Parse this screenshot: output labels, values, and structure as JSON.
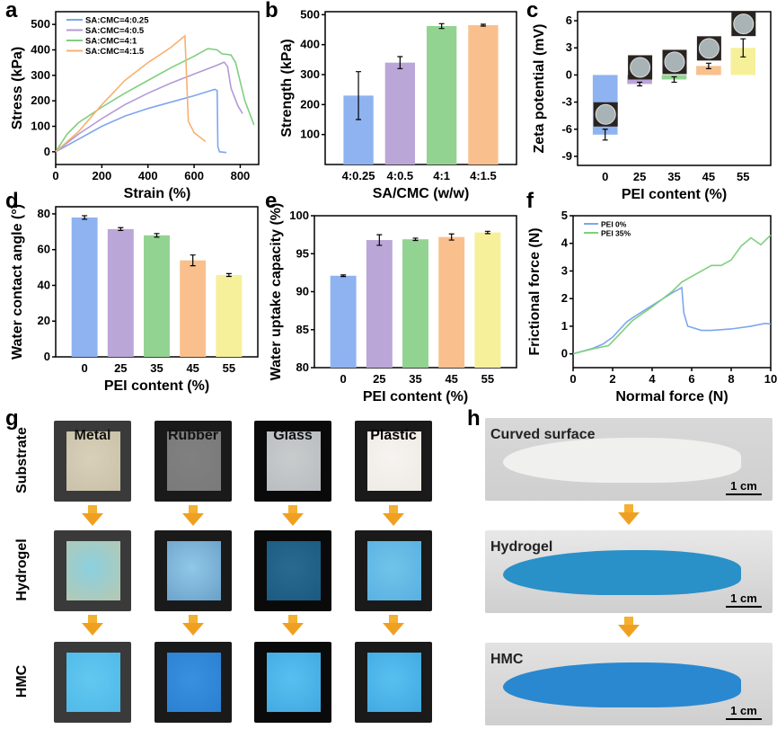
{
  "panel_labels": [
    "a",
    "b",
    "c",
    "d",
    "e",
    "f",
    "g",
    "h"
  ],
  "chart_data": [
    {
      "id": "a",
      "type": "line",
      "xlabel": "Strain (%)",
      "ylabel": "Stress (kPa)",
      "xlim": [
        0,
        880
      ],
      "ylim": [
        -50,
        550
      ],
      "xticks": [
        0,
        200,
        400,
        600,
        800
      ],
      "yticks": [
        0,
        100,
        200,
        300,
        400,
        500
      ],
      "legend": "top-left",
      "series": [
        {
          "name": "SA:CMC=4:0.25",
          "color": "#7ea6ee",
          "points": [
            [
              0,
              0
            ],
            [
              100,
              50
            ],
            [
              200,
              100
            ],
            [
              300,
              140
            ],
            [
              400,
              170
            ],
            [
              500,
              195
            ],
            [
              600,
              220
            ],
            [
              690,
              245
            ],
            [
              700,
              240
            ],
            [
              703,
              20
            ],
            [
              710,
              0
            ],
            [
              740,
              -3
            ]
          ]
        },
        {
          "name": "SA:CMC=4:0.5",
          "color": "#b39ad6",
          "points": [
            [
              0,
              0
            ],
            [
              100,
              70
            ],
            [
              200,
              130
            ],
            [
              300,
              185
            ],
            [
              400,
              230
            ],
            [
              500,
              270
            ],
            [
              600,
              305
            ],
            [
              700,
              340
            ],
            [
              730,
              352
            ],
            [
              745,
              335
            ],
            [
              760,
              250
            ],
            [
              790,
              180
            ],
            [
              810,
              150
            ]
          ]
        },
        {
          "name": "SA:CMC=4:1",
          "color": "#7fcf7f",
          "points": [
            [
              0,
              0
            ],
            [
              50,
              70
            ],
            [
              100,
              115
            ],
            [
              200,
              175
            ],
            [
              300,
              230
            ],
            [
              400,
              280
            ],
            [
              500,
              330
            ],
            [
              600,
              375
            ],
            [
              660,
              405
            ],
            [
              700,
              400
            ],
            [
              720,
              385
            ],
            [
              760,
              380
            ],
            [
              780,
              350
            ],
            [
              820,
              200
            ],
            [
              860,
              105
            ]
          ]
        },
        {
          "name": "SA:CMC=4:1.5",
          "color": "#f8b070",
          "points": [
            [
              0,
              0
            ],
            [
              100,
              80
            ],
            [
              200,
              185
            ],
            [
              300,
              280
            ],
            [
              400,
              350
            ],
            [
              500,
              410
            ],
            [
              560,
              455
            ],
            [
              565,
              350
            ],
            [
              575,
              120
            ],
            [
              600,
              75
            ],
            [
              650,
              40
            ]
          ]
        }
      ]
    },
    {
      "id": "b",
      "type": "bar",
      "xlabel": "SA/CMC (w/w)",
      "ylabel": "Strength (kPa)",
      "ylim": [
        0,
        510
      ],
      "yticks": [
        100,
        200,
        300,
        400,
        500
      ],
      "categories": [
        "4:0.25",
        "4:0.5",
        "4:1",
        "4:1.5"
      ],
      "values": [
        230,
        340,
        462,
        465
      ],
      "errors": [
        80,
        20,
        8,
        3
      ],
      "colors": [
        "#8fb3f0",
        "#bba6d8",
        "#92d392",
        "#f9c08e"
      ]
    },
    {
      "id": "c",
      "type": "bar",
      "xlabel": "PEI content (%)",
      "ylabel": "Zeta potential (mV)",
      "ylim": [
        -10,
        7
      ],
      "yticks": [
        -9,
        -6,
        -3,
        0,
        3,
        6
      ],
      "categories": [
        "0",
        "25",
        "35",
        "45",
        "55"
      ],
      "values": [
        -6.6,
        -1.0,
        -0.5,
        1.0,
        3.0
      ],
      "errors": [
        0.6,
        0.2,
        0.3,
        0.3,
        1.0
      ],
      "colors": [
        "#8fb3f0",
        "#bba6d8",
        "#92d392",
        "#f9c08e",
        "#f6f09a"
      ]
    },
    {
      "id": "d",
      "type": "bar",
      "xlabel": "PEI content (%)",
      "ylabel": "Water contact angle (°)",
      "ylim": [
        0,
        84
      ],
      "yticks": [
        0,
        20,
        40,
        60,
        80
      ],
      "categories": [
        "0",
        "25",
        "35",
        "45",
        "55"
      ],
      "values": [
        78,
        71.5,
        68,
        54,
        45.8
      ],
      "errors": [
        1,
        0.8,
        1,
        3,
        0.8
      ],
      "colors": [
        "#8fb3f0",
        "#bba6d8",
        "#92d392",
        "#f9c08e",
        "#f6f09a"
      ]
    },
    {
      "id": "e",
      "type": "bar",
      "xlabel": "PEI content (%)",
      "ylabel": "Water uptake capacity (%)",
      "ylim": [
        80,
        100
      ],
      "yticks": [
        80,
        85,
        90,
        95,
        100
      ],
      "categories": [
        "0",
        "25",
        "35",
        "45",
        "55"
      ],
      "values": [
        92.1,
        96.8,
        96.9,
        97.2,
        97.8
      ],
      "errors": [
        0.1,
        0.7,
        0.15,
        0.4,
        0.15
      ],
      "colors": [
        "#8fb3f0",
        "#bba6d8",
        "#92d392",
        "#f9c08e",
        "#f6f09a"
      ]
    },
    {
      "id": "f",
      "type": "line",
      "xlabel": "Normal force (N)",
      "ylabel": "Frictional force (N)",
      "xlim": [
        0,
        10
      ],
      "ylim": [
        -0.5,
        5
      ],
      "xticks": [
        0,
        2,
        4,
        6,
        8,
        10
      ],
      "yticks": [
        0,
        1,
        2,
        3,
        4,
        5
      ],
      "legend": "top-left",
      "series": [
        {
          "name": "PEI 0%",
          "color": "#7ea6ee",
          "points": [
            [
              0,
              0
            ],
            [
              1,
              0.2
            ],
            [
              1.5,
              0.35
            ],
            [
              2,
              0.6
            ],
            [
              2.7,
              1.15
            ],
            [
              3,
              1.3
            ],
            [
              4,
              1.75
            ],
            [
              5,
              2.2
            ],
            [
              5.5,
              2.4
            ],
            [
              5.6,
              1.5
            ],
            [
              5.8,
              1.0
            ],
            [
              6.5,
              0.85
            ],
            [
              7,
              0.85
            ],
            [
              8,
              0.9
            ],
            [
              9,
              1.0
            ],
            [
              9.7,
              1.1
            ],
            [
              10,
              1.08
            ]
          ]
        },
        {
          "name": "PEI 35%",
          "color": "#7fcf7f",
          "points": [
            [
              0,
              0
            ],
            [
              1,
              0.18
            ],
            [
              1.8,
              0.3
            ],
            [
              2,
              0.45
            ],
            [
              3,
              1.2
            ],
            [
              4,
              1.7
            ],
            [
              5,
              2.25
            ],
            [
              5.5,
              2.6
            ],
            [
              6,
              2.8
            ],
            [
              6.5,
              3.0
            ],
            [
              7,
              3.2
            ],
            [
              7.5,
              3.2
            ],
            [
              8,
              3.4
            ],
            [
              8.5,
              3.9
            ],
            [
              9,
              4.2
            ],
            [
              9.5,
              3.95
            ],
            [
              10,
              4.3
            ]
          ]
        }
      ]
    }
  ],
  "g": {
    "rows": [
      "Substrate",
      "Hydrogel",
      "HMC"
    ],
    "columns": [
      "Metal",
      "Rubber",
      "Glass",
      "Plastic"
    ]
  },
  "h": {
    "rows": [
      "Curved surface",
      "Hydrogel",
      "HMC"
    ],
    "scale": "1 cm"
  }
}
